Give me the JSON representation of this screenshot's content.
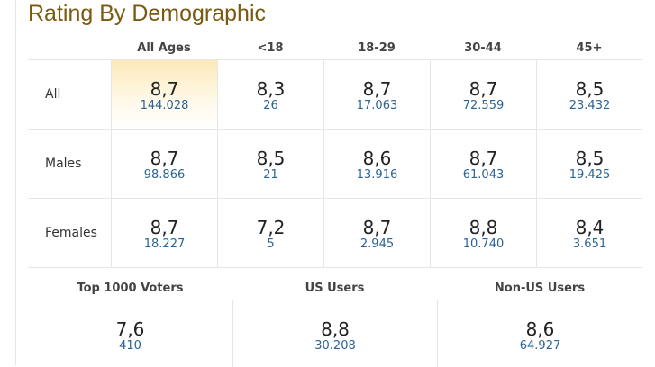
{
  "title": "Rating By Demographic",
  "columns": [
    "All Ages",
    "<18",
    "18-29",
    "30-44",
    "45+"
  ],
  "rows": [
    {
      "label": "All",
      "cells": [
        {
          "rating": "8,7",
          "votes": "144.028"
        },
        {
          "rating": "8,3",
          "votes": "26"
        },
        {
          "rating": "8,7",
          "votes": "17.063"
        },
        {
          "rating": "8,7",
          "votes": "72.559"
        },
        {
          "rating": "8,5",
          "votes": "23.432"
        }
      ]
    },
    {
      "label": "Males",
      "cells": [
        {
          "rating": "8,7",
          "votes": "98.866"
        },
        {
          "rating": "8,5",
          "votes": "21"
        },
        {
          "rating": "8,6",
          "votes": "13.916"
        },
        {
          "rating": "8,7",
          "votes": "61.043"
        },
        {
          "rating": "8,5",
          "votes": "19.425"
        }
      ]
    },
    {
      "label": "Females",
      "cells": [
        {
          "rating": "8,7",
          "votes": "18.227"
        },
        {
          "rating": "7,2",
          "votes": "5"
        },
        {
          "rating": "8,7",
          "votes": "2.945"
        },
        {
          "rating": "8,8",
          "votes": "10.740"
        },
        {
          "rating": "8,4",
          "votes": "3.651"
        }
      ]
    }
  ],
  "groups": [
    {
      "label": "Top 1000 Voters",
      "rating": "7,6",
      "votes": "410"
    },
    {
      "label": "US Users",
      "rating": "8,8",
      "votes": "30.208"
    },
    {
      "label": "Non-US Users",
      "rating": "8,6",
      "votes": "64.927"
    }
  ],
  "colors": {
    "title": "#7a5a10",
    "votes_link": "#2a6496",
    "highlight": "#fde8b8",
    "border": "#e6e6e6"
  }
}
